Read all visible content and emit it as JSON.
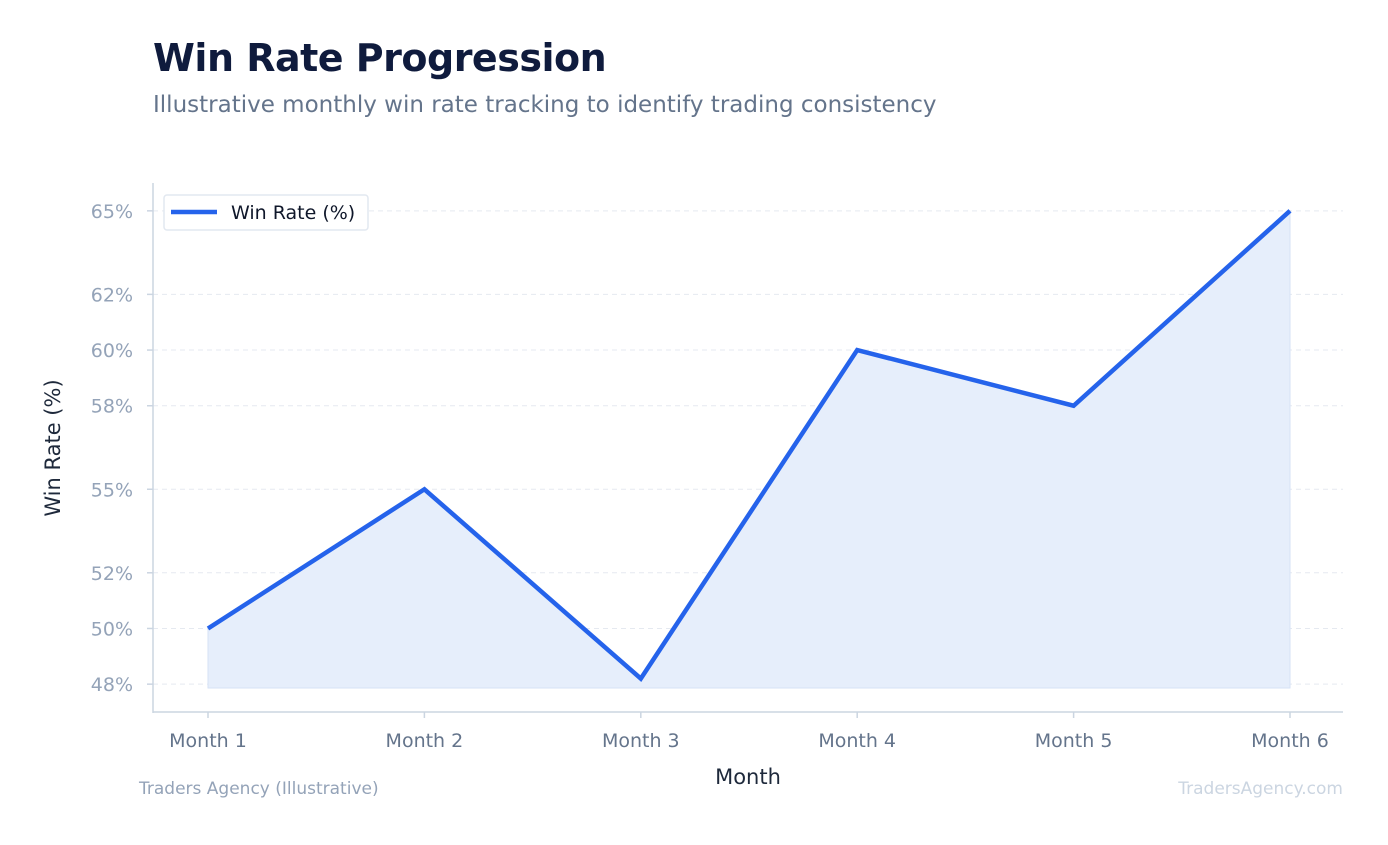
{
  "chart_data": {
    "type": "area",
    "title": "Win Rate Progression",
    "subtitle": "Illustrative monthly win rate tracking to identify trading consistency",
    "xlabel": "Month",
    "ylabel": "Win Rate (%)",
    "categories": [
      "Month 1",
      "Month 2",
      "Month 3",
      "Month 4",
      "Month 5",
      "Month 6"
    ],
    "series": [
      {
        "name": "Win Rate (%)",
        "values": [
          50,
          55,
          48.2,
          60,
          58,
          65
        ]
      }
    ],
    "yticks": [
      48,
      50,
      52,
      55,
      58,
      60,
      62,
      65
    ],
    "ytick_labels": [
      "48%",
      "50%",
      "52%",
      "55%",
      "58%",
      "60%",
      "62%",
      "65%"
    ],
    "ylim": [
      47,
      66
    ],
    "grid": true,
    "legend_position": "top-left",
    "line_color": "#2563eb",
    "fill_color": "#e6eefb"
  },
  "footer": {
    "left": "Traders Agency (Illustrative)",
    "right": "TradersAgency.com"
  }
}
